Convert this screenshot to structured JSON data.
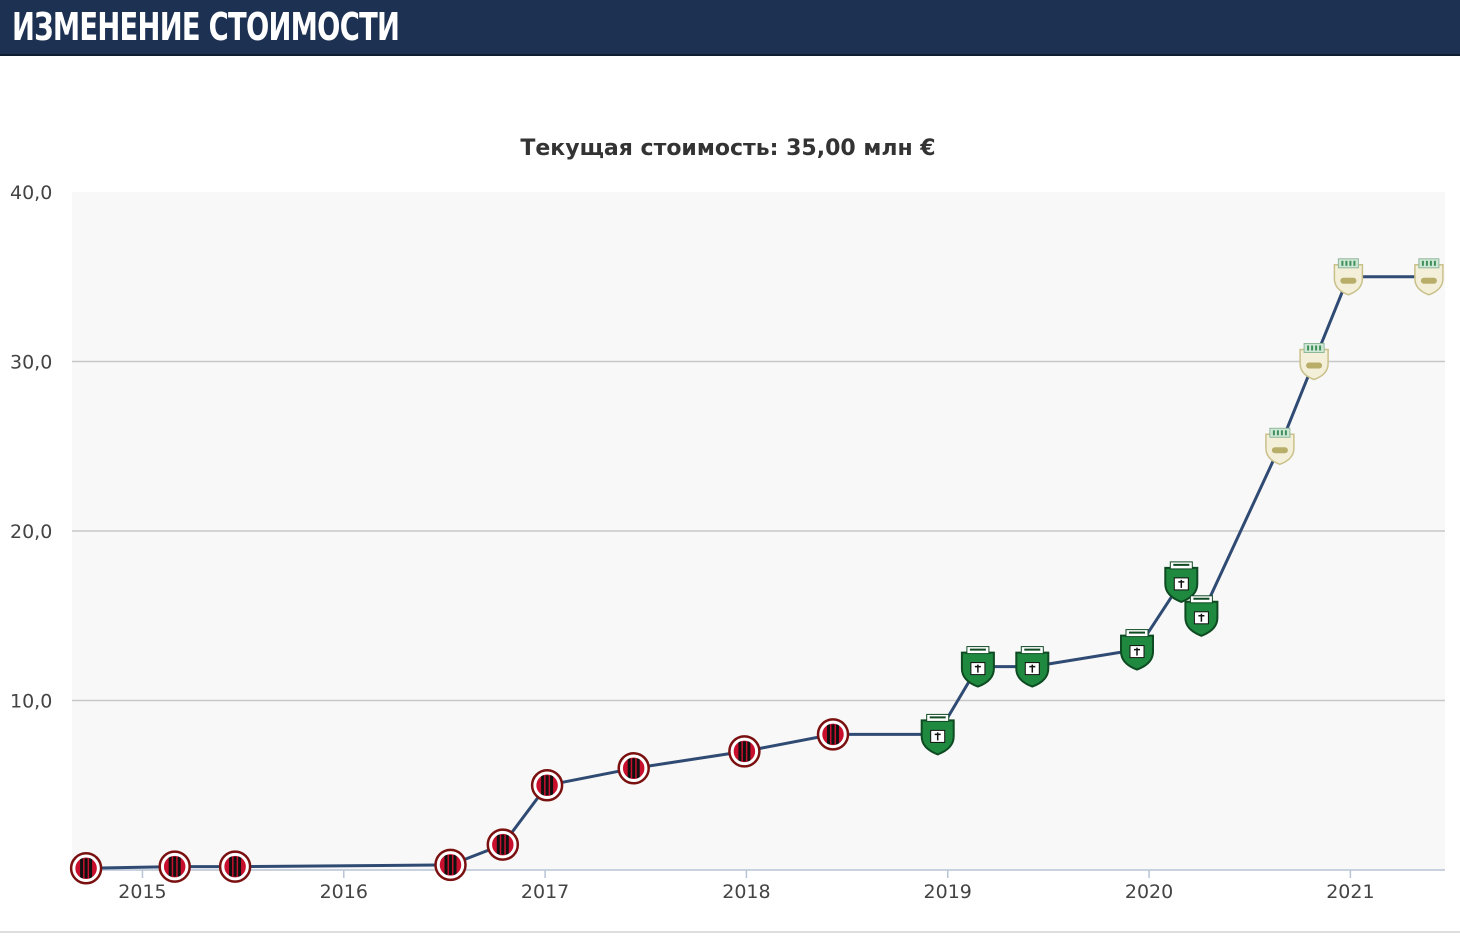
{
  "header": {
    "title": "ИЗМЕНЕНИЕ СТОИМОСТИ"
  },
  "colors": {
    "header_bg": "#1d3153",
    "line": "#2f4a73",
    "plot_bg": "#f8f8f8",
    "grid": "#c8c8c8",
    "milan_red": "#c8102e",
    "sassuolo_green": "#1f8a3f",
    "sassuolo_third": "#cfe8d6"
  },
  "chart_data": {
    "type": "line",
    "title": "Текущая стоимость: 35,00 млн €",
    "xlabel": "",
    "ylabel": "",
    "xlim": [
      2014.65,
      2021.47
    ],
    "ylim": [
      0,
      40
    ],
    "grid": true,
    "x_ticks": [
      {
        "value": 2015,
        "label": "2015"
      },
      {
        "value": 2016,
        "label": "2016"
      },
      {
        "value": 2017,
        "label": "2017"
      },
      {
        "value": 2018,
        "label": "2018"
      },
      {
        "value": 2019,
        "label": "2019"
      },
      {
        "value": 2020,
        "label": "2020"
      },
      {
        "value": 2021,
        "label": "2021"
      }
    ],
    "y_ticks": [
      {
        "value": 10,
        "label": "10,0"
      },
      {
        "value": 20,
        "label": "20,0"
      },
      {
        "value": 30,
        "label": "30,0"
      },
      {
        "value": 40,
        "label": "40,0"
      }
    ],
    "series": [
      {
        "points": [
          {
            "x": 2014.72,
            "y": 0.1,
            "club": "milan"
          },
          {
            "x": 2015.16,
            "y": 0.2,
            "club": "milan"
          },
          {
            "x": 2015.46,
            "y": 0.2,
            "club": "milan"
          },
          {
            "x": 2016.53,
            "y": 0.3,
            "club": "milan"
          },
          {
            "x": 2016.79,
            "y": 1.5,
            "club": "milan"
          },
          {
            "x": 2017.01,
            "y": 5.0,
            "club": "milan"
          },
          {
            "x": 2017.44,
            "y": 6.0,
            "club": "milan"
          },
          {
            "x": 2017.99,
            "y": 7.0,
            "club": "milan"
          },
          {
            "x": 2018.43,
            "y": 8.0,
            "club": "milan"
          },
          {
            "x": 2018.95,
            "y": 8.0,
            "club": "sassuolo"
          },
          {
            "x": 2019.15,
            "y": 12.0,
            "club": "sassuolo"
          },
          {
            "x": 2019.42,
            "y": 12.0,
            "club": "sassuolo"
          },
          {
            "x": 2019.94,
            "y": 13.0,
            "club": "sassuolo"
          },
          {
            "x": 2020.16,
            "y": 17.0,
            "club": "sassuolo"
          },
          {
            "x": 2020.26,
            "y": 15.0,
            "club": "sassuolo"
          },
          {
            "x": 2020.65,
            "y": 25.0,
            "club": "sassuolo_third"
          },
          {
            "x": 2020.82,
            "y": 30.0,
            "club": "sassuolo_third"
          },
          {
            "x": 2020.99,
            "y": 35.0,
            "club": "sassuolo_third"
          },
          {
            "x": 2021.39,
            "y": 35.0,
            "club": "sassuolo_third"
          }
        ]
      }
    ]
  }
}
